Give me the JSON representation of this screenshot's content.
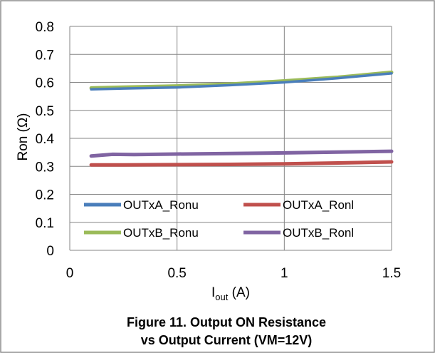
{
  "chart_data": {
    "type": "line",
    "title": "",
    "caption_lines": [
      "Figure 11. Output ON Resistance",
      "vs Output Current (VM=12V)"
    ],
    "ylabel": "Ron (Ω)",
    "xlabel_main": "I",
    "xlabel_sub": "out",
    "xlabel_unit": " (A)",
    "xlim": [
      0,
      1.5
    ],
    "ylim": [
      0,
      0.8
    ],
    "x_ticks": [
      "0",
      "0.5",
      "1",
      "1.5"
    ],
    "x_tick_values": [
      0,
      0.5,
      1,
      1.5
    ],
    "y_ticks": [
      "0",
      "0.1",
      "0.2",
      "0.3",
      "0.4",
      "0.5",
      "0.6",
      "0.7",
      "0.8"
    ],
    "y_tick_values": [
      0,
      0.1,
      0.2,
      0.3,
      0.4,
      0.5,
      0.6,
      0.7,
      0.8
    ],
    "grid": true,
    "legend_position": "lower-inside",
    "series": [
      {
        "name": "OUTxA_Ronu",
        "color": "#4A7EBB",
        "x": [
          0.1,
          0.25,
          0.5,
          0.75,
          1.0,
          1.25,
          1.5
        ],
        "y": [
          0.575,
          0.578,
          0.582,
          0.59,
          0.6,
          0.615,
          0.632
        ]
      },
      {
        "name": "OUTxA_Ronl",
        "color": "#C0504D",
        "x": [
          0.1,
          0.25,
          0.5,
          0.75,
          1.0,
          1.25,
          1.5
        ],
        "y": [
          0.305,
          0.305,
          0.306,
          0.307,
          0.309,
          0.312,
          0.316
        ]
      },
      {
        "name": "OUTxB_Ronu",
        "color": "#9BBB59",
        "x": [
          0.1,
          0.25,
          0.5,
          0.75,
          1.0,
          1.25,
          1.5
        ],
        "y": [
          0.58,
          0.583,
          0.587,
          0.594,
          0.605,
          0.618,
          0.636
        ]
      },
      {
        "name": "OUTxB_Ronl",
        "color": "#8064A2",
        "x": [
          0.1,
          0.2,
          0.3,
          0.5,
          0.75,
          1.0,
          1.25,
          1.5
        ],
        "y": [
          0.337,
          0.343,
          0.342,
          0.344,
          0.346,
          0.348,
          0.351,
          0.354
        ]
      }
    ]
  }
}
